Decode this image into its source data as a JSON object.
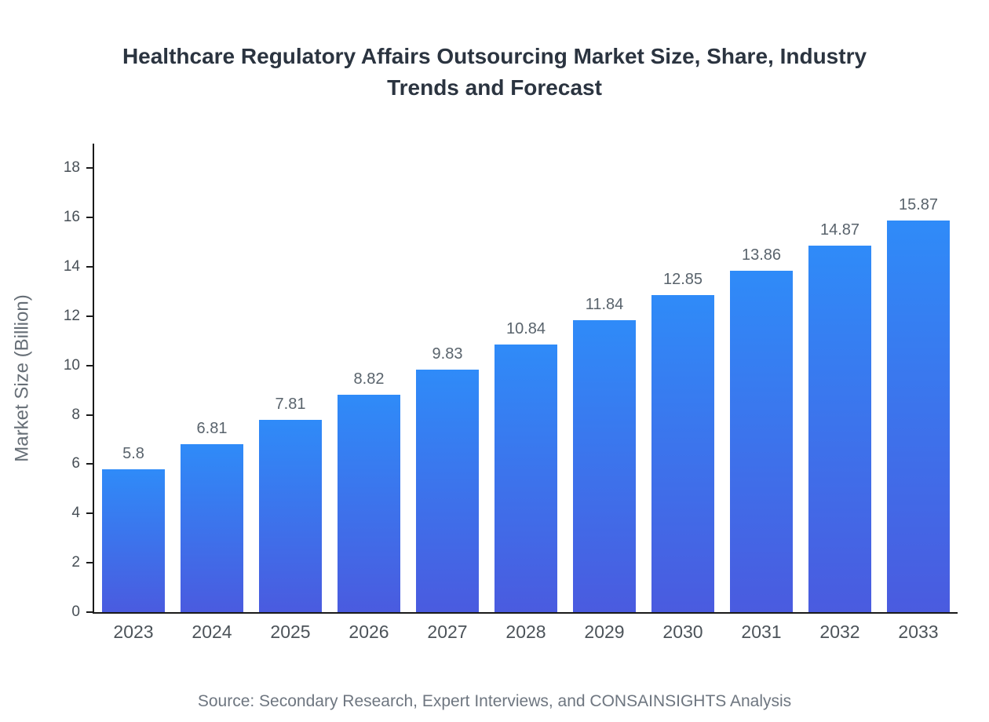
{
  "title": "Healthcare Regulatory Affairs Outsourcing Market Size, Share, Industry Trends and Forecast",
  "source": "Source: Secondary Research, Expert Interviews, and CONSAINSIGHTS Analysis",
  "chart_data": {
    "type": "bar",
    "title": "Healthcare Regulatory Affairs Outsourcing Market Size, Share, Industry Trends and Forecast",
    "categories": [
      "2023",
      "2024",
      "2025",
      "2026",
      "2027",
      "2028",
      "2029",
      "2030",
      "2031",
      "2032",
      "2033"
    ],
    "values": [
      5.8,
      6.81,
      7.81,
      8.82,
      9.83,
      10.84,
      11.84,
      12.85,
      13.86,
      14.87,
      15.87
    ],
    "value_labels": [
      "5.8",
      "6.81",
      "7.81",
      "8.82",
      "9.83",
      "10.84",
      "11.84",
      "12.85",
      "13.86",
      "14.87",
      "15.87"
    ],
    "xlabel": "",
    "ylabel": "Market Size (Billion)",
    "ylim": [
      0,
      19
    ],
    "yticks": [
      0,
      2,
      4,
      6,
      8,
      10,
      12,
      14,
      16,
      18
    ],
    "grid": false,
    "legend": "none",
    "bar_gradient_top": "#2F8BF8",
    "bar_gradient_bottom": "#4A5BDF",
    "axis_color": "#1a1a1a",
    "title_color": "#2b3440",
    "label_color": "#59636c"
  }
}
